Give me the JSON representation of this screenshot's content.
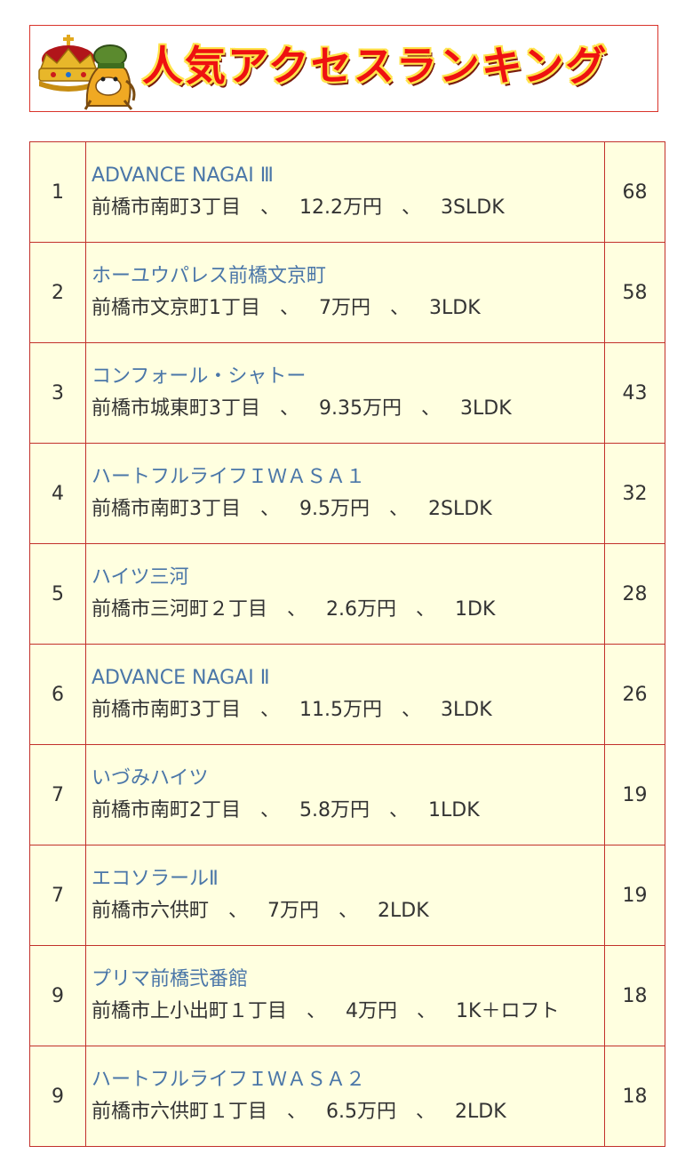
{
  "header": {
    "title": "人気アクセスランキング",
    "title_color": "#ee1111",
    "outline_color": "#ffe34a",
    "mascot_icon": "crown-horse-mascot"
  },
  "colors": {
    "border": "#c2312b",
    "row_background": "#ffffe0",
    "link": "#4a76a8",
    "text": "#333333"
  },
  "ranking": {
    "separator": "、",
    "rows": [
      {
        "rank": "1",
        "name": "ADVANCE NAGAI Ⅲ",
        "address": "前橋市南町3丁目",
        "rent": "12.2万円",
        "layout": "3SLDK",
        "count": "68"
      },
      {
        "rank": "2",
        "name": "ホーユウパレス前橋文京町",
        "address": "前橋市文京町1丁目",
        "rent": "7万円",
        "layout": "3LDK",
        "count": "58"
      },
      {
        "rank": "3",
        "name": "コンフォール・シャトー",
        "address": "前橋市城東町3丁目",
        "rent": "9.35万円",
        "layout": "3LDK",
        "count": "43"
      },
      {
        "rank": "4",
        "name": "ハートフルライフＩＷＡＳＡ１",
        "address": "前橋市南町3丁目",
        "rent": "9.5万円",
        "layout": "2SLDK",
        "count": "32"
      },
      {
        "rank": "5",
        "name": "ハイツ三河",
        "address": "前橋市三河町２丁目",
        "rent": "2.6万円",
        "layout": "1DK",
        "count": "28"
      },
      {
        "rank": "6",
        "name": "ADVANCE NAGAI Ⅱ",
        "address": "前橋市南町3丁目",
        "rent": "11.5万円",
        "layout": "3LDK",
        "count": "26"
      },
      {
        "rank": "7",
        "name": "いづみハイツ",
        "address": "前橋市南町2丁目",
        "rent": "5.8万円",
        "layout": "1LDK",
        "count": "19"
      },
      {
        "rank": "7",
        "name": "エコソラールⅡ",
        "address": "前橋市六供町",
        "rent": "7万円",
        "layout": "2LDK",
        "count": "19"
      },
      {
        "rank": "9",
        "name": "プリマ前橋弐番館",
        "address": "前橋市上小出町１丁目",
        "rent": "4万円",
        "layout": "1K＋ロフト",
        "count": "18"
      },
      {
        "rank": "9",
        "name": "ハートフルライフＩＷＡＳＡ２",
        "address": "前橋市六供町１丁目",
        "rent": "6.5万円",
        "layout": "2LDK",
        "count": "18"
      }
    ]
  }
}
